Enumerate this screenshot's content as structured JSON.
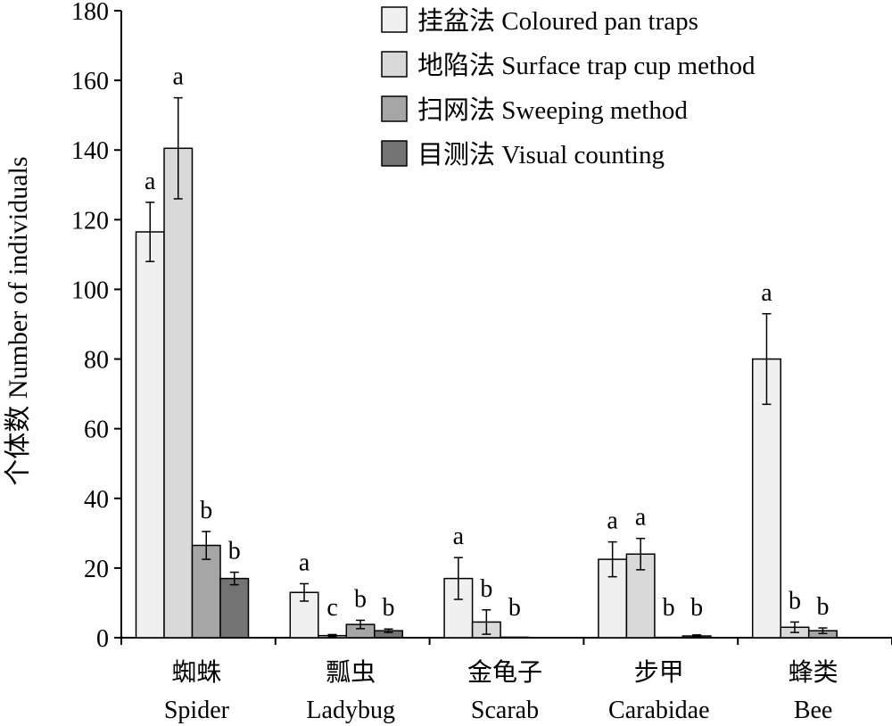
{
  "chart_data": {
    "type": "bar",
    "ylabel": "个体数 Number of individuals",
    "ylim": [
      0,
      180
    ],
    "yticks": [
      0,
      20,
      40,
      60,
      80,
      100,
      120,
      140,
      160,
      180
    ],
    "legend_position": "top-right",
    "categories": [
      {
        "cn": "蜘蛛",
        "en": "Spider"
      },
      {
        "cn": "瓢虫",
        "en": "Ladybug"
      },
      {
        "cn": "金龟子",
        "en": "Scarab"
      },
      {
        "cn": "步甲",
        "en": "Carabidae"
      },
      {
        "cn": "蜂类",
        "en": "Bee"
      }
    ],
    "series": [
      {
        "name": "挂盆法 Coloured pan traps",
        "color": "#f0f0f0",
        "values": [
          116.5,
          13,
          17,
          22.5,
          80
        ],
        "errors": [
          8.5,
          2.5,
          6,
          5,
          13
        ],
        "labels": [
          "a",
          "a",
          "a",
          "a",
          "a"
        ]
      },
      {
        "name": "地陷法 Surface trap cup method",
        "color": "#d9d9d9",
        "values": [
          140.5,
          0.6,
          4.5,
          24,
          3
        ],
        "errors": [
          14.5,
          0.3,
          3.5,
          4.5,
          1.5
        ],
        "labels": [
          "a",
          "c",
          "b",
          "a",
          "b"
        ]
      },
      {
        "name": "扫网法 Sweeping method",
        "color": "#a6a6a6",
        "values": [
          26.5,
          3.8,
          0.15,
          0.1,
          2
        ],
        "errors": [
          4,
          1.2,
          0,
          0,
          0.8
        ],
        "labels": [
          "b",
          "b",
          "b",
          "b",
          "b"
        ]
      },
      {
        "name": "目测法 Visual counting",
        "color": "#737373",
        "values": [
          17,
          2,
          0,
          0.5,
          0
        ],
        "errors": [
          1.8,
          0.5,
          0,
          0.3,
          0
        ],
        "labels": [
          "b",
          "b",
          "",
          "b",
          ""
        ]
      }
    ]
  }
}
